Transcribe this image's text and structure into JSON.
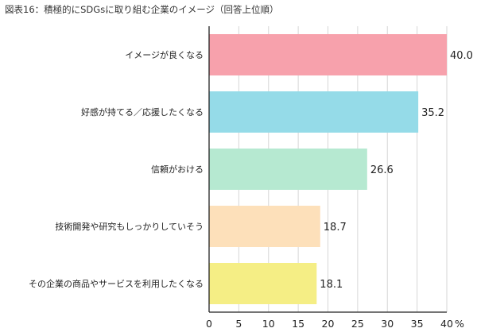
{
  "chart_data": {
    "type": "bar",
    "orientation": "horizontal",
    "title": "図表16：積極的にSDGsに取り組む企業のイメージ（回答上位順）",
    "categories": [
      "イメージが良くなる",
      "好感が持てる／応援したくなる",
      "信頼がおける",
      "技術開発や研究もしっかりしていそう",
      "その企業の商品やサービスを利用したくなる"
    ],
    "values": [
      40.0,
      35.2,
      26.6,
      18.7,
      18.1
    ],
    "value_labels": [
      "40.0",
      "35.2",
      "26.6",
      "18.7",
      "18.1"
    ],
    "colors": [
      "#f7a1ac",
      "#95dbe8",
      "#b6e9d1",
      "#fde0ba",
      "#f5ee85"
    ],
    "xlim": [
      0,
      40
    ],
    "xticks": [
      "0",
      "5",
      "10",
      "15",
      "20",
      "25",
      "30",
      "35",
      "40"
    ],
    "xunit": "%",
    "grid": true,
    "xlabel": "",
    "ylabel": ""
  }
}
